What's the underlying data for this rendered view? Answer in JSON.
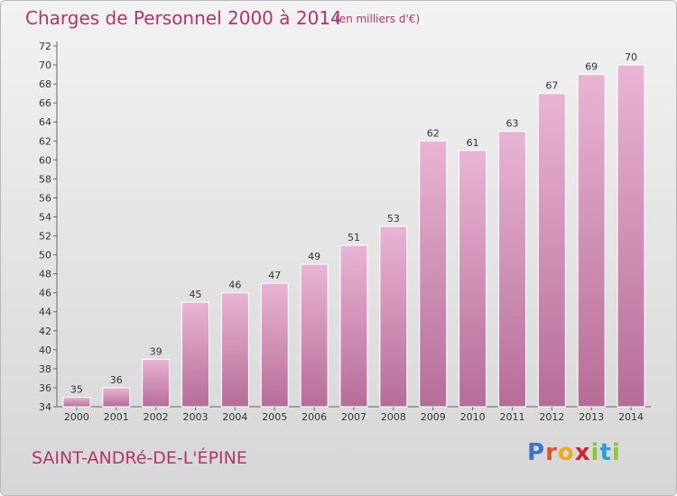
{
  "header": {
    "title": "Charges de Personnel 2000 à 2014",
    "subtitle": "(en milliers d'€)"
  },
  "footer": {
    "commune": "SAINT-ANDRé-DE-L'ÉPINE",
    "logo_letters": [
      "P",
      "r",
      "o",
      "x",
      "i",
      "t",
      "i"
    ],
    "logo_colors": [
      "#3b78c2",
      "#e0532c",
      "#f2a81d",
      "#c8282c",
      "#8cc63f",
      "#2aa2d6",
      "#8cc63f"
    ]
  },
  "colors": {
    "bar_top": "#e9b4d3",
    "bar_bottom": "#b66d98",
    "text_accent": "#b0356e"
  },
  "chart_data": {
    "type": "bar",
    "title": "Charges de Personnel 2000 à 2014",
    "subtitle": "(en milliers d'€)",
    "categories": [
      "2000",
      "2001",
      "2002",
      "2003",
      "2004",
      "2005",
      "2006",
      "2007",
      "2008",
      "2009",
      "2010",
      "2011",
      "2012",
      "2013",
      "2014"
    ],
    "values": [
      35,
      36,
      39,
      45,
      46,
      47,
      49,
      51,
      53,
      62,
      61,
      63,
      67,
      69,
      70
    ],
    "ylim": [
      34,
      72
    ],
    "yticks": [
      34,
      36,
      38,
      40,
      42,
      44,
      46,
      48,
      50,
      52,
      54,
      56,
      58,
      60,
      62,
      64,
      66,
      68,
      70,
      72
    ],
    "grid": false,
    "data_labels": true
  }
}
